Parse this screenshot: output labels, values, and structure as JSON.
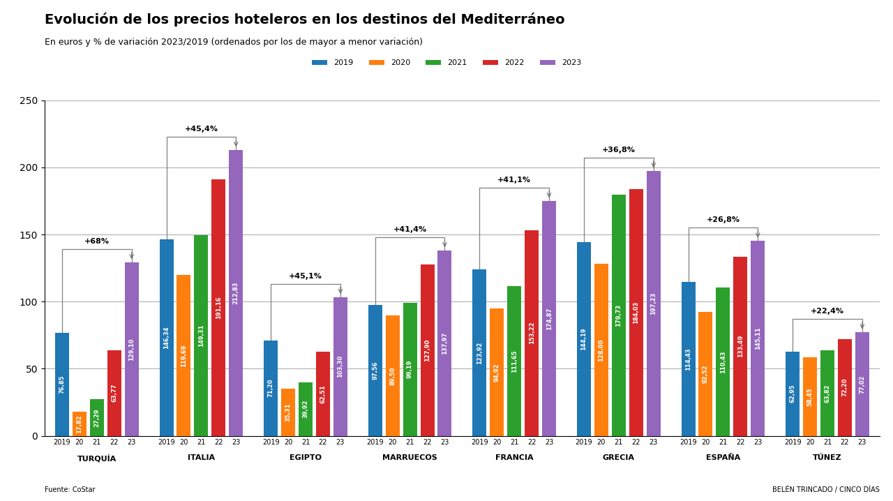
{
  "chart_data": {
    "type": "bar",
    "title": "Evolución de los precios hoteleros en los destinos del Mediterráneo",
    "subtitle": "En euros y % de variación 2023/2019 (ordenados por los de mayor a menor variación)",
    "source": "Fuente: CoStar",
    "credit": "BELÉN TRINCADO / CINCO DÍAS",
    "categories": [
      "TURQUÍA",
      "ITALIA",
      "EGIPTO",
      "MARRUECOS",
      "FRANCIA",
      "GRECIA",
      "ESPAÑA",
      "TÚNEZ"
    ],
    "bar_labels": [
      "2019",
      "20",
      "21",
      "22",
      "23"
    ],
    "series": [
      {
        "name": "2019",
        "values": [
          76.85,
          146.34,
          71.2,
          97.56,
          123.92,
          144.19,
          114.43,
          62.95
        ],
        "value_labels": [
          "76,85",
          "146,34",
          "71,20",
          "97,56",
          "123,92",
          "144,19",
          "114,43",
          "62,95"
        ]
      },
      {
        "name": "2020",
        "values": [
          17.82,
          119.69,
          35.31,
          89.5,
          94.92,
          128.0,
          92.52,
          58.45
        ],
        "value_labels": [
          "17,82",
          "119,69",
          "35,31",
          "89,50",
          "94,92",
          "128,00",
          "92,52",
          "58,45"
        ]
      },
      {
        "name": "2021",
        "values": [
          27.29,
          149.31,
          39.92,
          99.19,
          111.65,
          179.73,
          110.43,
          63.82
        ],
        "value_labels": [
          "27,29",
          "149,31",
          "39,92",
          "99,19",
          "111,65",
          "179,73",
          "110,43",
          "63,82"
        ]
      },
      {
        "name": "2022",
        "values": [
          63.77,
          191.16,
          62.51,
          127.9,
          153.22,
          184.03,
          133.49,
          72.2
        ],
        "value_labels": [
          "63,77",
          "191,16",
          "62,51",
          "127,90",
          "153,22",
          "184,03",
          "133,49",
          "72,20"
        ]
      },
      {
        "name": "2023",
        "values": [
          129.1,
          212.83,
          103.3,
          137.97,
          174.87,
          197.23,
          145.11,
          77.02
        ],
        "value_labels": [
          "129,10",
          "212,83",
          "103,30",
          "137,97",
          "174,87",
          "197,23",
          "145,11",
          "77,02"
        ]
      }
    ],
    "annotations": [
      {
        "category": "TURQUÍA",
        "text": "+68%"
      },
      {
        "category": "ITALIA",
        "text": "+45,4%"
      },
      {
        "category": "EGIPTO",
        "text": "+45,1%"
      },
      {
        "category": "MARRUECOS",
        "text": "+41,4%"
      },
      {
        "category": "FRANCIA",
        "text": "+41,1%"
      },
      {
        "category": "GRECIA",
        "text": "+36,8%"
      },
      {
        "category": "ESPAÑA",
        "text": "+26,8%"
      },
      {
        "category": "TÚNEZ",
        "text": "+22,4%"
      }
    ],
    "ylim": [
      0,
      250
    ],
    "yticks": [
      0,
      50,
      100,
      150,
      200,
      250
    ],
    "grid": true,
    "legend": "upper center",
    "data_labels": true
  }
}
